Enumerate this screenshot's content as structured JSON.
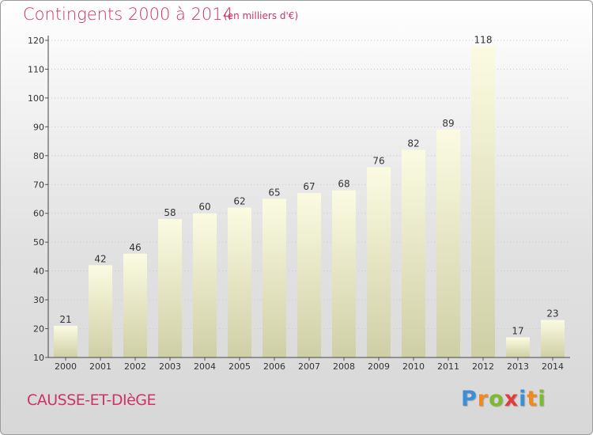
{
  "header": {
    "title": "Contingents 2000 à 2014",
    "subtitle": "(en milliers d'€)"
  },
  "footer": {
    "commune": "CAUSSE-ET-DIèGE",
    "logo_letters": [
      "P",
      "r",
      "o",
      "x",
      "i",
      "t",
      "i"
    ],
    "logo_colors": [
      "#3a8fd6",
      "#f08a1c",
      "#7dbb2e",
      "#e43c3c",
      "#3a8fd6",
      "#f08a1c",
      "#7dbb2e"
    ]
  },
  "colors": {
    "title": "#cc3366",
    "bar_top": "#fbfbe2",
    "bar_bottom": "#cfcfa6",
    "grid": "#c8c8c8"
  },
  "chart_data": {
    "type": "bar",
    "categories": [
      "2000",
      "2001",
      "2002",
      "2003",
      "2004",
      "2005",
      "2006",
      "2007",
      "2008",
      "2009",
      "2010",
      "2011",
      "2012",
      "2013",
      "2014"
    ],
    "values": [
      21,
      42,
      46,
      58,
      60,
      62,
      65,
      67,
      68,
      76,
      82,
      89,
      118,
      17,
      23
    ],
    "yticks": [
      10,
      20,
      30,
      40,
      50,
      60,
      70,
      80,
      90,
      100,
      110,
      120
    ],
    "ylim": [
      10,
      120
    ],
    "grid": "dotted-horizontal",
    "legend": "none"
  }
}
